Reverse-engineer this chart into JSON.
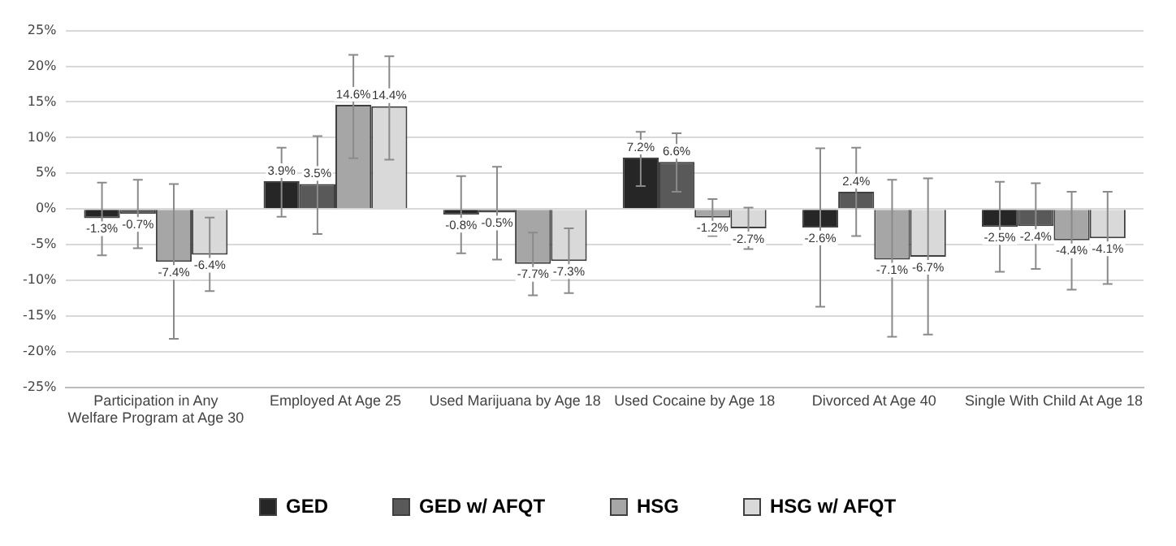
{
  "chart_data": {
    "type": "bar",
    "categories": [
      "Participation in Any Welfare Program at Age 30",
      "Employed At Age 25",
      "Used Marijuana by Age 18",
      "Used Cocaine by Age 18",
      "Divorced At Age 40",
      "Single With Child At Age 18"
    ],
    "series": [
      {
        "name": "GED",
        "color": "#262626",
        "values": [
          -1.3,
          3.9,
          -0.8,
          7.2,
          -2.6,
          -2.5
        ],
        "value_labels": [
          "-1.3%",
          "3.9%",
          "-0.8%",
          "7.2%",
          "-2.6%",
          "-2.5%"
        ],
        "errors": [
          [
            -6.5,
            3.7
          ],
          [
            -1.1,
            8.6
          ],
          [
            -6.2,
            4.6
          ],
          [
            3.2,
            10.8
          ],
          [
            -13.7,
            8.5
          ],
          [
            -8.8,
            3.8
          ]
        ]
      },
      {
        "name": "GED w/ AFQT",
        "color": "#595959",
        "values": [
          -0.7,
          3.5,
          -0.5,
          6.6,
          2.4,
          -2.4
        ],
        "value_labels": [
          "-0.7%",
          "3.5%",
          "-0.5%",
          "6.6%",
          "2.4%",
          "-2.4%"
        ],
        "errors": [
          [
            -5.5,
            4.1
          ],
          [
            -3.5,
            10.2
          ],
          [
            -7.1,
            5.9
          ],
          [
            2.4,
            10.6
          ],
          [
            -3.8,
            8.6
          ],
          [
            -8.4,
            3.6
          ]
        ]
      },
      {
        "name": "HSG",
        "color": "#a6a6a6",
        "values": [
          -7.4,
          14.6,
          -7.7,
          -1.2,
          -7.1,
          -4.4
        ],
        "value_labels": [
          "-7.4%",
          "14.6%",
          "-7.7%",
          "-1.2%",
          "-7.1%",
          "-4.4%"
        ],
        "errors": [
          [
            -18.2,
            3.5
          ],
          [
            7.1,
            21.6
          ],
          [
            -12.1,
            -3.3
          ],
          [
            -3.8,
            1.4
          ],
          [
            -17.9,
            4.1
          ],
          [
            -11.3,
            2.4
          ]
        ]
      },
      {
        "name": "HSG w/ AFQT",
        "color": "#d9d9d9",
        "values": [
          -6.4,
          14.4,
          -7.3,
          -2.7,
          -6.7,
          -4.1
        ],
        "value_labels": [
          "-6.4%",
          "14.4%",
          "-7.3%",
          "-2.7%",
          "-6.7%",
          "-4.1%"
        ],
        "errors": [
          [
            -11.5,
            -1.2
          ],
          [
            6.9,
            21.4
          ],
          [
            -11.8,
            -2.7
          ],
          [
            -5.6,
            0.2
          ],
          [
            -17.6,
            4.3
          ],
          [
            -10.5,
            2.4
          ]
        ]
      }
    ],
    "ylim": [
      -25,
      25
    ],
    "yticks": [
      {
        "value": -25,
        "label": "-25%"
      },
      {
        "value": -20,
        "label": "-20%"
      },
      {
        "value": -15,
        "label": "-15%"
      },
      {
        "value": -10,
        "label": "-10%"
      },
      {
        "value": -5,
        "label": "-5%"
      },
      {
        "value": 0,
        "label": "0%"
      },
      {
        "value": 5,
        "label": "5%"
      },
      {
        "value": 10,
        "label": "10%"
      },
      {
        "value": 15,
        "label": "15%"
      },
      {
        "value": 20,
        "label": "20%"
      },
      {
        "value": 25,
        "label": "25%"
      }
    ],
    "grid": "y",
    "legend": "bottom"
  }
}
